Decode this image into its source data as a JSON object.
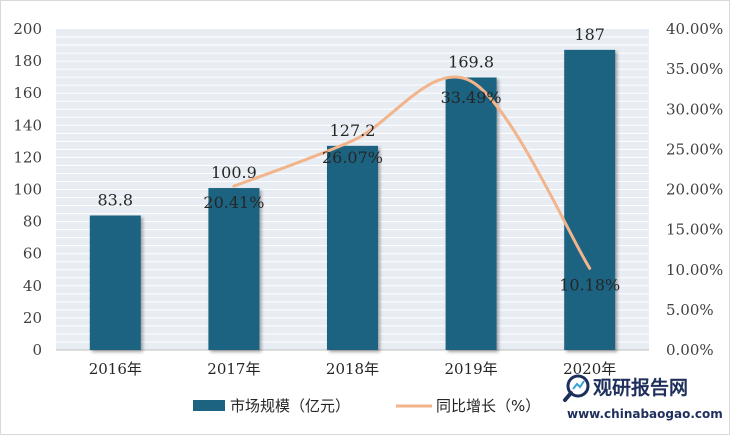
{
  "chart_data": {
    "type": "bar",
    "categories": [
      "2016年",
      "2017年",
      "2018年",
      "2019年",
      "2020年"
    ],
    "series": [
      {
        "name": "市场规模（亿元）",
        "type": "bar",
        "axis": "left",
        "color": "#1c6381",
        "values": [
          83.8,
          100.9,
          127.2,
          169.8,
          187
        ],
        "labels": [
          "83.8",
          "100.9",
          "127.2",
          "169.8",
          "187"
        ]
      },
      {
        "name": "同比增长（%）",
        "type": "line",
        "axis": "right",
        "color": "#f2b48a",
        "values": [
          null,
          20.41,
          26.07,
          33.49,
          10.18
        ],
        "labels": [
          "",
          "20.41%",
          "26.07%",
          "33.49%",
          "10.18%"
        ]
      }
    ],
    "y_left": {
      "lim": [
        0,
        200
      ],
      "ticks": [
        0,
        20,
        40,
        60,
        80,
        100,
        120,
        140,
        160,
        180,
        200
      ],
      "tick_labels": [
        "0",
        "20",
        "40",
        "60",
        "80",
        "100",
        "120",
        "140",
        "160",
        "180",
        "200"
      ]
    },
    "y_right": {
      "lim": [
        0,
        40
      ],
      "ticks": [
        0,
        5,
        10,
        15,
        20,
        25,
        30,
        35,
        40
      ],
      "tick_labels": [
        "0.00%",
        "5.00%",
        "10.00%",
        "15.00%",
        "20.00%",
        "25.00%",
        "30.00%",
        "35.00%",
        "40.00%"
      ]
    },
    "grid": "horizontal",
    "legend": "bottom",
    "background": "#e8edf3",
    "grid_color": "#ffffff"
  },
  "watermark": {
    "name": "观研报告网",
    "url": "www.chinabaogao.com",
    "icon": "magnifier-logo-icon"
  }
}
